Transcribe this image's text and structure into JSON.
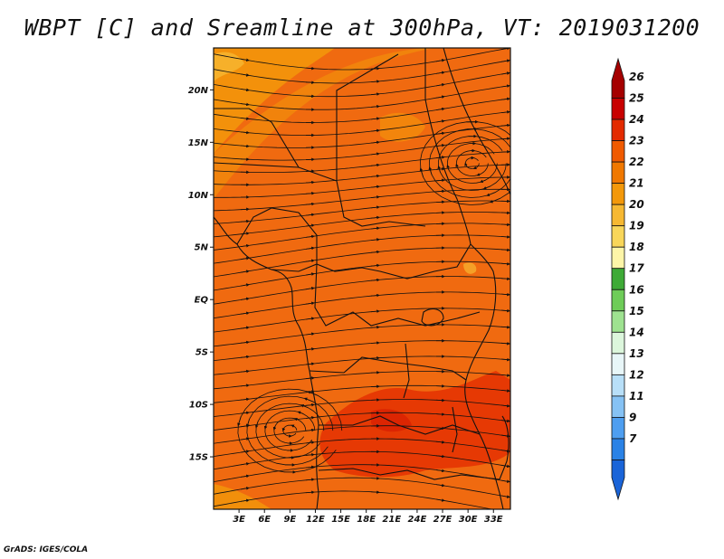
{
  "title": "WBPT [C] and Sreamline at 300hPa, VT: 2019031200",
  "credit": "GrADS: IGES/COLA",
  "map": {
    "lon_range": [
      0,
      35
    ],
    "lat_range": [
      -20,
      24
    ],
    "lon_ticks": [
      3,
      6,
      9,
      12,
      15,
      18,
      21,
      24,
      27,
      30,
      33
    ],
    "lon_tick_labels": [
      "3E",
      "6E",
      "9E",
      "12E",
      "15E",
      "18E",
      "21E",
      "24E",
      "27E",
      "30E",
      "33E"
    ],
    "lat_ticks": [
      20,
      15,
      10,
      5,
      0,
      -5,
      -10,
      -15
    ],
    "lat_tick_labels": [
      "20N",
      "15N",
      "10N",
      "5N",
      "EQ",
      "5S",
      "10S",
      "15S"
    ],
    "background_color": "#f06a10",
    "circulation_centers": [
      {
        "type": "anticyclone",
        "lon": 30.5,
        "lat": 13
      },
      {
        "type": "cyclone",
        "lon": 9,
        "lat": -12.5
      }
    ]
  },
  "colorbar": {
    "labels": [
      "26",
      "25",
      "24",
      "23",
      "22",
      "21",
      "20",
      "19",
      "18",
      "17",
      "16",
      "15",
      "14",
      "13",
      "12",
      "11",
      "9",
      "7"
    ],
    "colors": [
      "#a50000",
      "#c80000",
      "#e32a00",
      "#f05a00",
      "#f07800",
      "#f3980a",
      "#f6b832",
      "#f8d65a",
      "#fdf5a8",
      "#3eaa36",
      "#6ecc58",
      "#9ee290",
      "#dcf6dc",
      "#e8f6f8",
      "#b8dff8",
      "#86c2f4",
      "#4e9ef0",
      "#2a82e6",
      "#1a64d8"
    ]
  }
}
